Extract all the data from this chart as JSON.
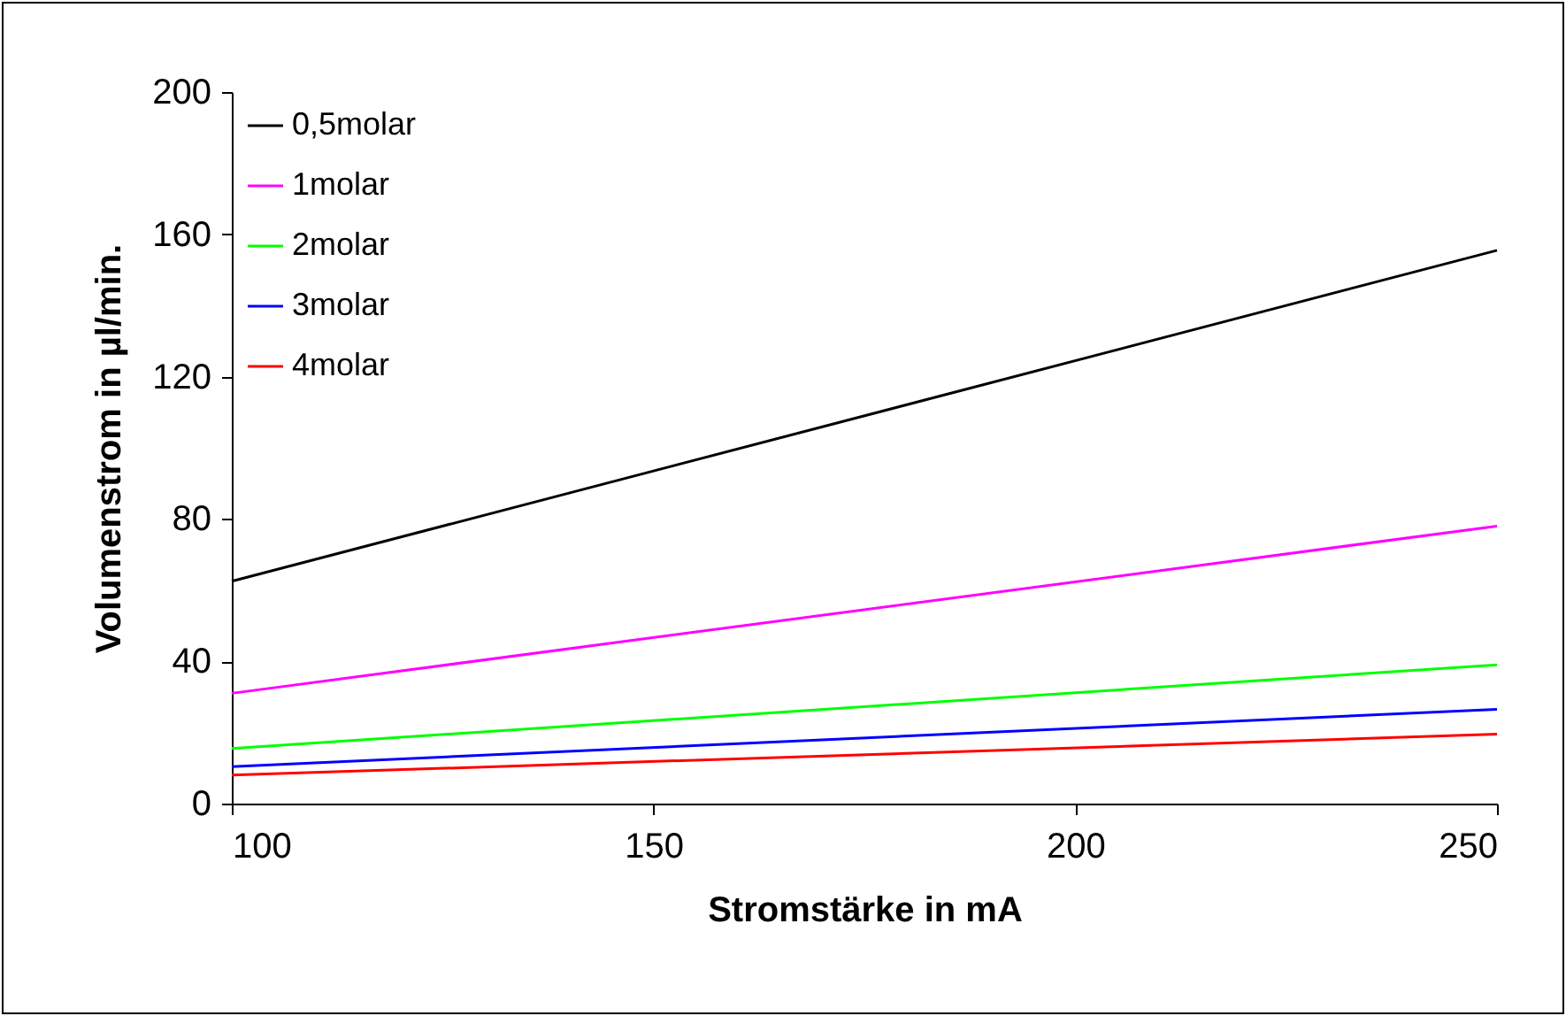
{
  "chart_data": {
    "type": "line",
    "xlabel": "Stromstärke in mA",
    "ylabel": "Volumenstrom in µl/min.",
    "x": [
      100,
      250
    ],
    "series": [
      {
        "name": "0,5molar",
        "color": "#000000",
        "values": [
          62.5,
          155.5
        ]
      },
      {
        "name": "1molar",
        "color": "#ff00ff",
        "values": [
          31,
          78
        ]
      },
      {
        "name": "2molar",
        "color": "#00ff00",
        "values": [
          15.5,
          39
        ]
      },
      {
        "name": "3molar",
        "color": "#0000ff",
        "values": [
          10.4,
          26.5
        ]
      },
      {
        "name": "4molar",
        "color": "#ff0000",
        "values": [
          8,
          19.5
        ]
      }
    ],
    "xlim": [
      100,
      250
    ],
    "xticks": [
      100,
      150,
      200,
      250
    ],
    "ylim": [
      0,
      200
    ],
    "yticks": [
      0,
      40,
      80,
      120,
      160,
      200
    ],
    "grid": false,
    "legend": "top left",
    "marker": "none",
    "line_style": "solid"
  }
}
